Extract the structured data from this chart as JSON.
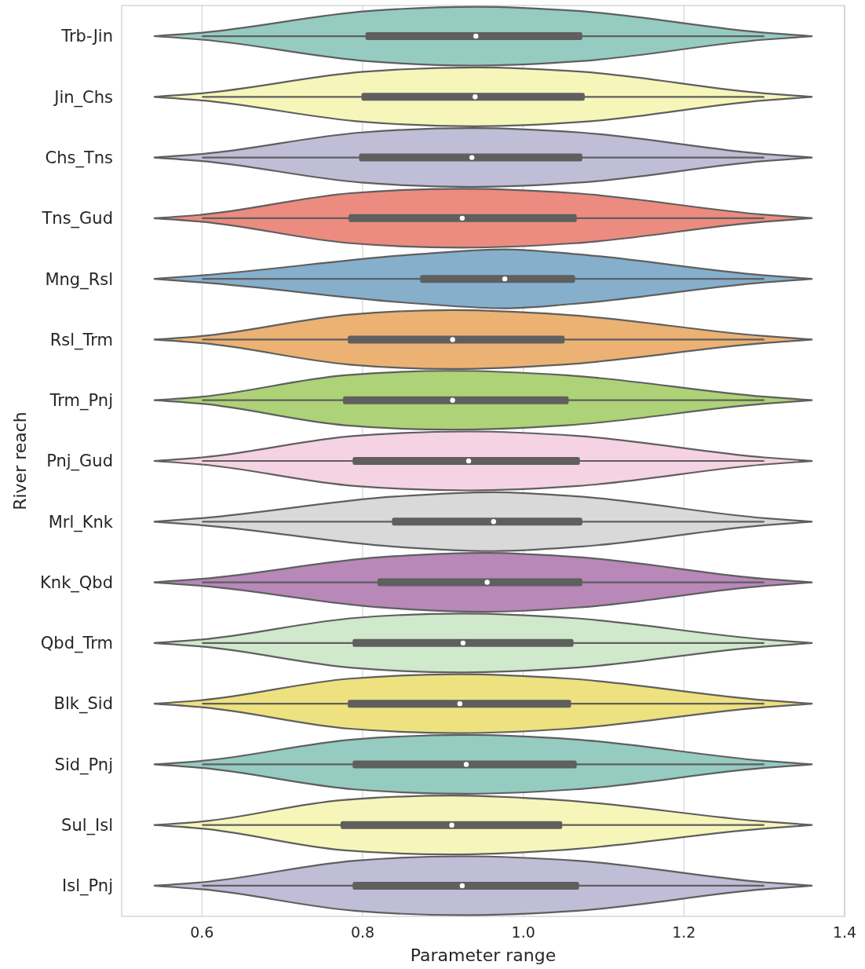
{
  "chart_data": {
    "type": "box",
    "orientation": "horizontal",
    "xlabel": "Parameter range",
    "ylabel": "River reach",
    "categories": [
      "Trb-Jin",
      "Jin_Chs",
      "Chs_Tns",
      "Tns_Gud",
      "Mng_Rsl",
      "Rsl_Trm",
      "Trm_Pnj",
      "Pnj_Gud",
      "Mrl_Knk",
      "Knk_Qbd",
      "Qbd_Trm",
      "Blk_Sid",
      "Sid_Pnj",
      "Sul_Isl",
      "Isl_Pnj"
    ],
    "colors": [
      "#96cbc1",
      "#f6f6ba",
      "#c0bdd6",
      "#ec8b80",
      "#86afcc",
      "#ebb274",
      "#aed277",
      "#f5d3e3",
      "#d9d9d9",
      "#b788b8",
      "#d0e8cb",
      "#eee17f",
      "#96cbc1",
      "#f6f6ba",
      "#c0bdd6"
    ],
    "boxes": [
      {
        "low": 0.6,
        "q1": 0.806,
        "median": 0.941,
        "q3": 1.071,
        "high": 1.3
      },
      {
        "low": 0.6,
        "q1": 0.801,
        "median": 0.94,
        "q3": 1.074,
        "high": 1.3
      },
      {
        "low": 0.6,
        "q1": 0.798,
        "median": 0.936,
        "q3": 1.071,
        "high": 1.3
      },
      {
        "low": 0.6,
        "q1": 0.785,
        "median": 0.924,
        "q3": 1.064,
        "high": 1.3
      },
      {
        "low": 0.6,
        "q1": 0.874,
        "median": 0.977,
        "q3": 1.062,
        "high": 1.3
      },
      {
        "low": 0.6,
        "q1": 0.784,
        "median": 0.912,
        "q3": 1.049,
        "high": 1.3
      },
      {
        "low": 0.6,
        "q1": 0.778,
        "median": 0.912,
        "q3": 1.054,
        "high": 1.3
      },
      {
        "low": 0.6,
        "q1": 0.79,
        "median": 0.932,
        "q3": 1.068,
        "high": 1.3
      },
      {
        "low": 0.6,
        "q1": 0.839,
        "median": 0.963,
        "q3": 1.071,
        "high": 1.3
      },
      {
        "low": 0.6,
        "q1": 0.821,
        "median": 0.955,
        "q3": 1.071,
        "high": 1.3
      },
      {
        "low": 0.6,
        "q1": 0.79,
        "median": 0.925,
        "q3": 1.06,
        "high": 1.3
      },
      {
        "low": 0.6,
        "q1": 0.784,
        "median": 0.921,
        "q3": 1.057,
        "high": 1.3
      },
      {
        "low": 0.6,
        "q1": 0.79,
        "median": 0.929,
        "q3": 1.064,
        "high": 1.3
      },
      {
        "low": 0.6,
        "q1": 0.775,
        "median": 0.911,
        "q3": 1.046,
        "high": 1.3
      },
      {
        "low": 0.6,
        "q1": 0.79,
        "median": 0.924,
        "q3": 1.067,
        "high": 1.3
      }
    ],
    "xlim": [
      0.5,
      1.4
    ],
    "xticks": [
      0.6,
      0.8,
      {
        "value": 1,
        "label": "1.0"
      },
      1.2,
      1.4
    ],
    "grid": "x"
  }
}
